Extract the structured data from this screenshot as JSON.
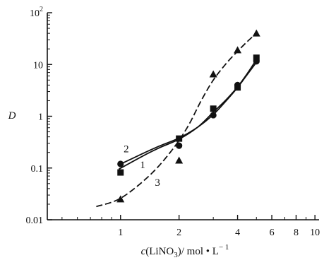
{
  "chart_data": {
    "type": "scatter",
    "title": "",
    "xlabel_prefix": "c",
    "xlabel_main": "(LiNO",
    "xlabel_sub": "3",
    "xlabel_rest": ")/ mol  •  L",
    "xlabel_sup": "− 1",
    "ylabel": "D",
    "x_scale": "log",
    "y_scale": "log",
    "xlim": [
      0.42,
      10.5
    ],
    "ylim": [
      0.01,
      100
    ],
    "x_ticks": [
      1,
      2,
      4,
      6,
      8,
      10
    ],
    "x_tick_labels": [
      "1",
      "2",
      "4",
      "6",
      "8",
      "10"
    ],
    "y_ticks": [
      0.01,
      0.1,
      1,
      10,
      100
    ],
    "y_tick_labels": [
      "0.01",
      "0.1",
      "1",
      "10",
      "10²"
    ],
    "grid": false,
    "series": [
      {
        "name": "2",
        "marker": "circle",
        "points": [
          [
            1,
            0.12
          ],
          [
            2,
            0.27
          ],
          [
            3,
            1.05
          ],
          [
            4,
            4.0
          ],
          [
            5,
            11.5
          ]
        ],
        "curve": [
          [
            0.98,
            0.115
          ],
          [
            1.3,
            0.19
          ],
          [
            1.6,
            0.27
          ],
          [
            2,
            0.38
          ],
          [
            2.5,
            0.62
          ],
          [
            3,
            1.08
          ],
          [
            3.5,
            2.0
          ],
          [
            4,
            3.6
          ],
          [
            4.5,
            6.5
          ],
          [
            5,
            11.0
          ]
        ]
      },
      {
        "name": "1",
        "marker": "square",
        "points": [
          [
            1,
            0.082
          ],
          [
            2,
            0.37
          ],
          [
            3,
            1.4
          ],
          [
            4,
            3.6
          ],
          [
            5,
            13.5
          ]
        ],
        "curve": [
          [
            0.98,
            0.095
          ],
          [
            1.3,
            0.17
          ],
          [
            1.6,
            0.25
          ],
          [
            2,
            0.36
          ],
          [
            2.5,
            0.62
          ],
          [
            3,
            1.2
          ],
          [
            3.5,
            2.1
          ],
          [
            4,
            3.7
          ],
          [
            4.5,
            6.8
          ],
          [
            5,
            12.5
          ]
        ]
      },
      {
        "name": "3",
        "marker": "triangle",
        "points": [
          [
            1,
            0.025
          ],
          [
            2,
            0.14
          ],
          [
            3,
            6.5
          ],
          [
            4,
            19
          ],
          [
            5,
            40
          ]
        ],
        "curve": [
          [
            0.75,
            0.018
          ],
          [
            1,
            0.026
          ],
          [
            1.4,
            0.07
          ],
          [
            1.8,
            0.2
          ],
          [
            2.2,
            0.6
          ],
          [
            2.6,
            2.0
          ],
          [
            3,
            5.0
          ],
          [
            3.5,
            10.5
          ],
          [
            4,
            18
          ],
          [
            4.5,
            28
          ],
          [
            5,
            40
          ]
        ]
      }
    ],
    "curve_labels": [
      {
        "text": "2",
        "x": 1.07,
        "y": 0.2
      },
      {
        "text": "1",
        "x": 1.3,
        "y": 0.1
      },
      {
        "text": "3",
        "x": 1.55,
        "y": 0.045
      }
    ]
  }
}
